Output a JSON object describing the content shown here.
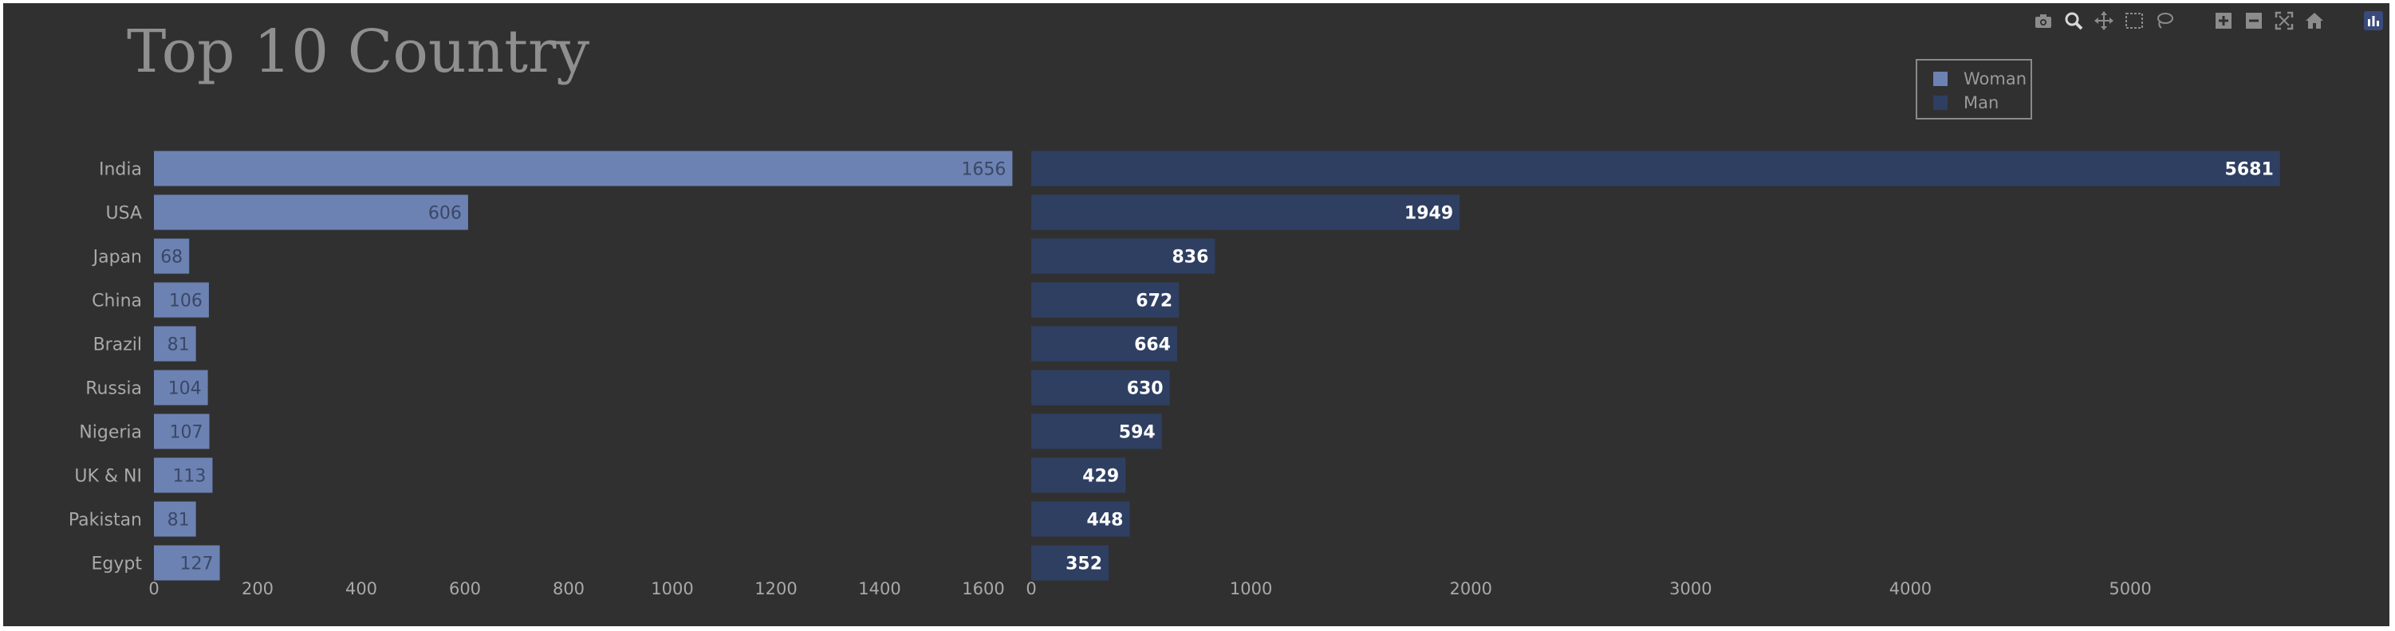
{
  "chart_data": {
    "type": "bar",
    "orientation": "horizontal",
    "title": "Top 10 Country",
    "categories": [
      "India",
      "USA",
      "Japan",
      "China",
      "Brazil",
      "Russia",
      "Nigeria",
      "UK & NI",
      "Pakistan",
      "Egypt"
    ],
    "series": [
      {
        "name": "Woman",
        "color": "#6c82b2",
        "values": [
          1656,
          606,
          68,
          106,
          81,
          104,
          107,
          113,
          81,
          127
        ],
        "xlim": [
          0,
          1700
        ],
        "ticks": [
          0,
          200,
          400,
          600,
          800,
          1000,
          1200,
          1400,
          1600
        ]
      },
      {
        "name": "Man",
        "color": "#2f3f62",
        "values": [
          5681,
          1949,
          836,
          672,
          664,
          630,
          594,
          429,
          448,
          352
        ],
        "xlim": [
          0,
          5700
        ],
        "ticks": [
          0,
          1000,
          2000,
          3000,
          4000,
          5000
        ]
      }
    ],
    "legend_position": "top-right",
    "grid": false,
    "background": "#303030"
  },
  "modebar": {
    "icons": [
      "camera-icon",
      "zoom-icon",
      "pan-icon",
      "box-select-icon",
      "lasso-icon",
      "zoom-in-icon",
      "zoom-out-icon",
      "autoscale-icon",
      "reset-axes-icon",
      "plotly-logo-icon"
    ]
  }
}
